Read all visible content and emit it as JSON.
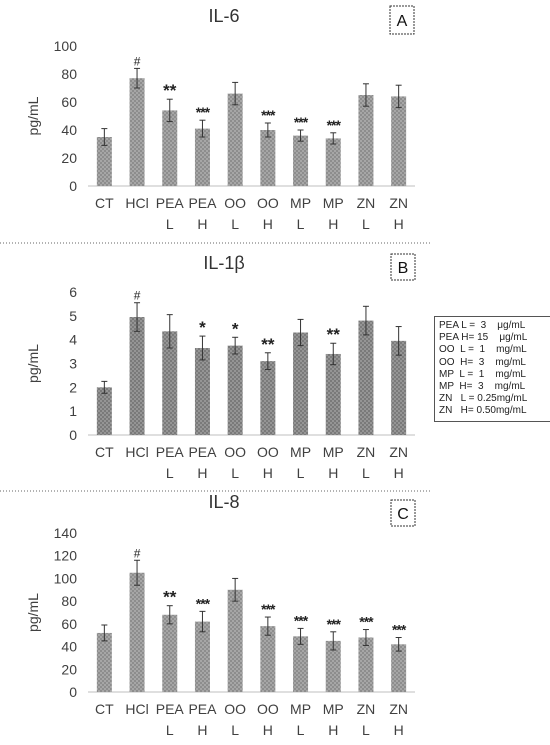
{
  "chart_data": [
    {
      "type": "bar",
      "title": "IL-6",
      "panel_label": "A",
      "ylabel": "pg/mL",
      "ylim": [
        0,
        100
      ],
      "yticks": [
        "0",
        "20",
        "40",
        "60",
        "80",
        "100"
      ],
      "categories": [
        [
          "CT"
        ],
        [
          "HCl"
        ],
        [
          "PEA",
          "L"
        ],
        [
          "PEA",
          "H"
        ],
        [
          "OO",
          "L"
        ],
        [
          "OO",
          "H"
        ],
        [
          "MP",
          "L"
        ],
        [
          "MP",
          "H"
        ],
        [
          "ZN",
          "L"
        ],
        [
          "ZN",
          "H"
        ]
      ],
      "values": [
        35,
        77,
        54,
        41,
        66,
        40,
        36,
        34,
        65,
        64
      ],
      "errors": [
        6,
        7,
        8,
        6,
        8,
        5,
        4,
        4,
        8,
        8
      ],
      "significance": [
        "",
        "#",
        "**",
        "***",
        "",
        "***",
        "***",
        "***",
        "",
        ""
      ]
    },
    {
      "type": "bar",
      "title": "IL-1β",
      "panel_label": "B",
      "ylabel": "pg/mL",
      "ylim": [
        0,
        6
      ],
      "yticks": [
        "0",
        "1",
        "2",
        "3",
        "4",
        "5",
        "6"
      ],
      "categories": [
        [
          "CT"
        ],
        [
          "HCl"
        ],
        [
          "PEA",
          "L"
        ],
        [
          "PEA",
          "H"
        ],
        [
          "OO",
          "L"
        ],
        [
          "OO",
          "H"
        ],
        [
          "MP",
          "L"
        ],
        [
          "MP",
          "H"
        ],
        [
          "ZN",
          "L"
        ],
        [
          "ZN",
          "H"
        ]
      ],
      "values": [
        2.0,
        4.95,
        4.35,
        3.65,
        3.75,
        3.1,
        4.3,
        3.4,
        4.8,
        3.95
      ],
      "errors": [
        0.25,
        0.6,
        0.7,
        0.5,
        0.35,
        0.35,
        0.55,
        0.45,
        0.6,
        0.6
      ],
      "significance": [
        "",
        "#",
        "",
        "*",
        "*",
        "**",
        "",
        "**",
        "",
        ""
      ]
    },
    {
      "type": "bar",
      "title": "IL-8",
      "panel_label": "C",
      "ylabel": "pg/mL",
      "ylim": [
        0,
        140
      ],
      "yticks": [
        "0",
        "20",
        "40",
        "60",
        "80",
        "100",
        "120",
        "140"
      ],
      "categories": [
        [
          "CT"
        ],
        [
          "HCl"
        ],
        [
          "PEA",
          "L"
        ],
        [
          "PEA",
          "H"
        ],
        [
          "OO",
          "L"
        ],
        [
          "OO",
          "H"
        ],
        [
          "MP",
          "L"
        ],
        [
          "MP",
          "H"
        ],
        [
          "ZN",
          "L"
        ],
        [
          "ZN",
          "H"
        ]
      ],
      "values": [
        52,
        105,
        68,
        62,
        90,
        58,
        49,
        45,
        48,
        42
      ],
      "errors": [
        7,
        11,
        8,
        9,
        10,
        8,
        7,
        8,
        7,
        6
      ],
      "significance": [
        "",
        "#",
        "**",
        "***",
        "",
        "***",
        "***",
        "***",
        "***",
        "***"
      ]
    }
  ],
  "legend": [
    "PEA L =  3    μg/mL",
    "PEA H= 15    μg/mL",
    "OO  L =  1    mg/mL",
    "OO  H=  3    mg/mL",
    "MP  L =  1    mg/mL",
    "MP  H=  3    mg/mL",
    "ZN   L = 0.25mg/mL",
    "ZN   H= 0.50mg/mL"
  ],
  "colors": {
    "bar": "#9a9a9a",
    "bar_dark": "#858585",
    "axis": "#bfbfbf",
    "text": "#404040"
  }
}
